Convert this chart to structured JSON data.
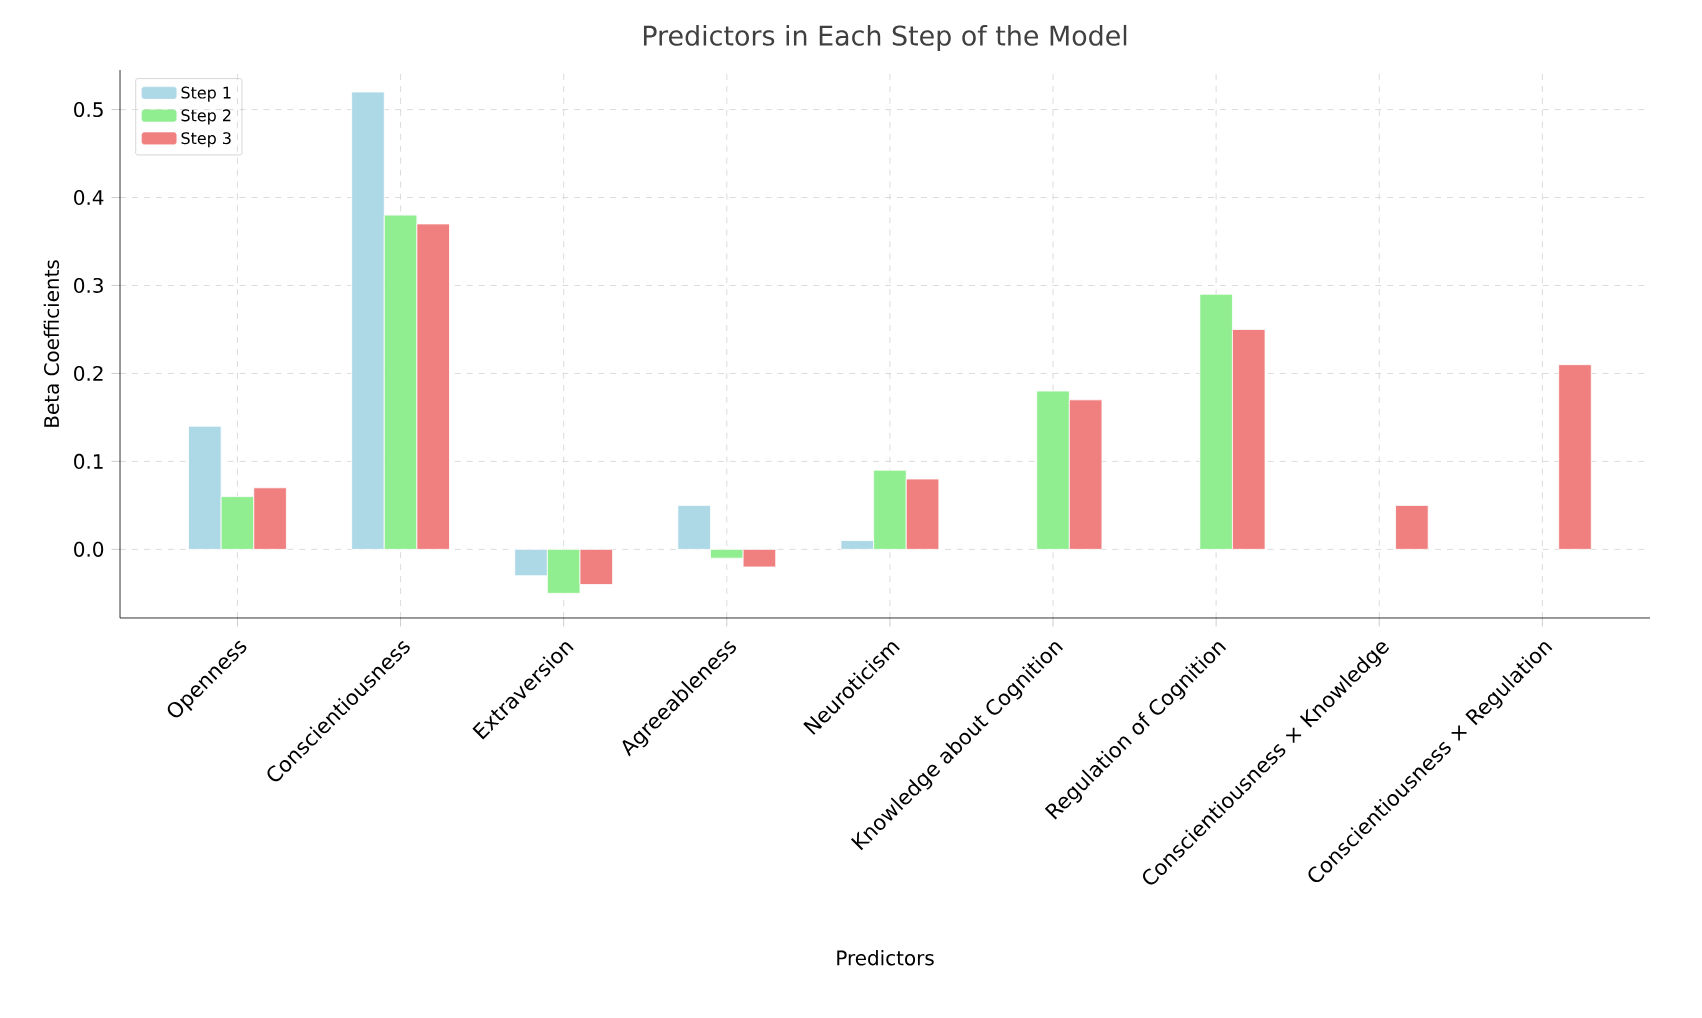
{
  "chart_data": {
    "type": "bar",
    "title": "Predictors in Each Step of the Model",
    "xlabel": "Predictors",
    "ylabel": "Beta Coefficients",
    "categories": [
      "Openness",
      "Conscientiousness",
      "Extraversion",
      "Agreeableness",
      "Neuroticism",
      "Knowledge about Cognition",
      "Regulation of Cognition",
      "Conscientiousness × Knowledge",
      "Conscientiousness × Regulation"
    ],
    "series": [
      {
        "name": "Step 1",
        "color": "#add8e6",
        "values": [
          0.14,
          0.52,
          -0.03,
          0.05,
          0.01,
          null,
          null,
          null,
          null
        ]
      },
      {
        "name": "Step 2",
        "color": "#90ee90",
        "values": [
          0.06,
          0.38,
          -0.05,
          -0.01,
          0.09,
          0.18,
          0.29,
          null,
          null
        ]
      },
      {
        "name": "Step 3",
        "color": "#f08080",
        "values": [
          0.07,
          0.37,
          -0.04,
          -0.02,
          0.08,
          0.17,
          0.25,
          0.05,
          0.21
        ]
      }
    ],
    "ylim": [
      -0.078,
      0.545
    ],
    "yticks": [
      {
        "value": 0,
        "label": "0.0"
      },
      0.1,
      0.2,
      0.3,
      0.4,
      0.5
    ],
    "grid": true,
    "legend": "top left"
  }
}
